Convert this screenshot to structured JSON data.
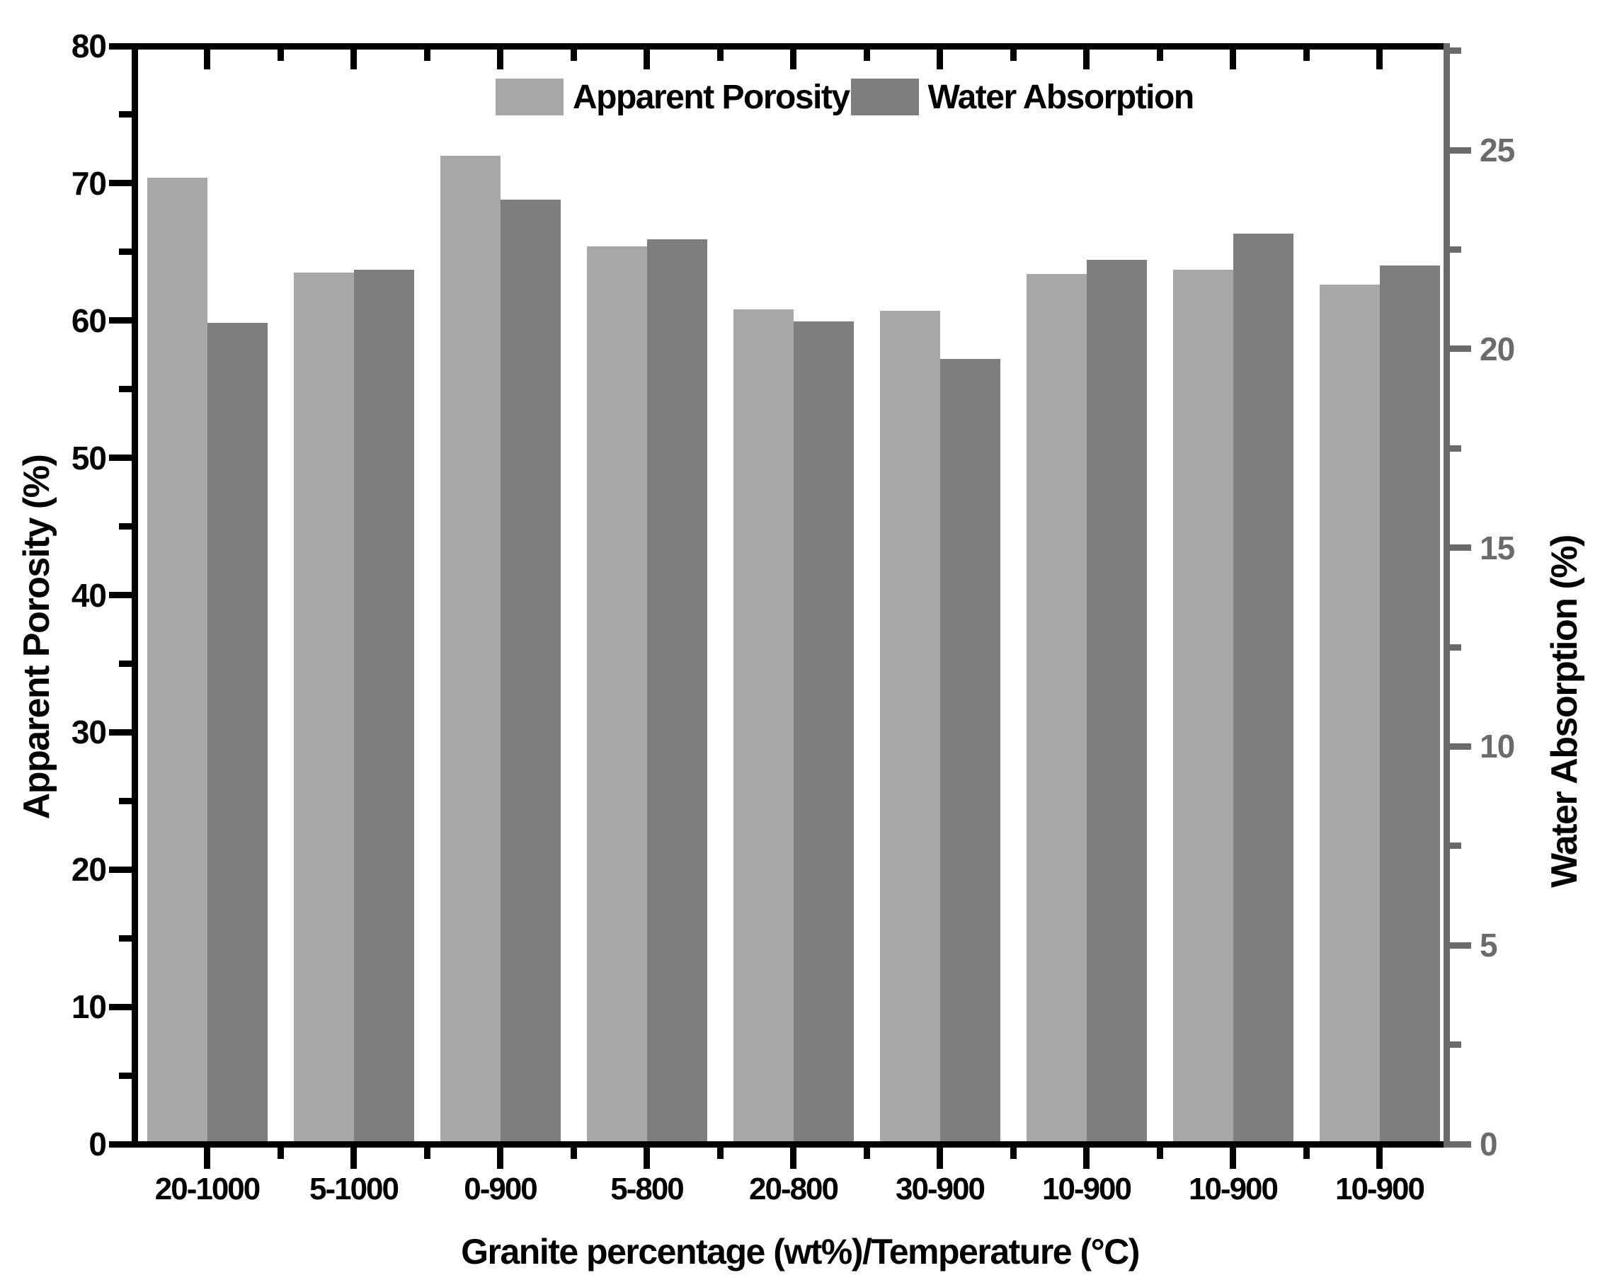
{
  "chart_data": {
    "type": "bar",
    "title": "",
    "categories": [
      "20-1000",
      "5-1000",
      "0-900",
      "5-800",
      "20-800",
      "30-900",
      "10-900",
      "10-900",
      "10-900"
    ],
    "series": [
      {
        "name": "Apparent Porosity",
        "axis": "left",
        "color": "#a7a7a7",
        "values": [
          70.4,
          63.5,
          72.0,
          65.4,
          60.8,
          60.7,
          63.4,
          63.7,
          62.6
        ]
      },
      {
        "name": "Water Absorption",
        "axis": "right",
        "color": "#7e7e7e",
        "values": [
          20.65,
          22.0,
          23.75,
          22.75,
          20.7,
          19.75,
          22.25,
          22.9,
          22.1
        ]
      }
    ],
    "xlabel": "Granite percentage (wt%)/Temperature (°C)",
    "left_axis": {
      "label": "Apparent Porosity (%)",
      "min": 0,
      "max": 80,
      "major_step": 10,
      "minor_step": 5,
      "ticks": [
        0,
        10,
        20,
        30,
        40,
        50,
        60,
        70,
        80
      ],
      "color": "#000000"
    },
    "right_axis": {
      "label": "Water Absorption (%)",
      "min": 0,
      "max": 27.62,
      "major_step": 5,
      "minor_step": 2.5,
      "ticks": [
        0,
        5,
        10,
        15,
        20,
        25
      ],
      "color": "#6b6b6b"
    },
    "legend": {
      "position": "top-center",
      "entries": [
        "Apparent Porosity",
        "Water Absorption"
      ]
    },
    "grid": false,
    "background": "#ffffff"
  }
}
